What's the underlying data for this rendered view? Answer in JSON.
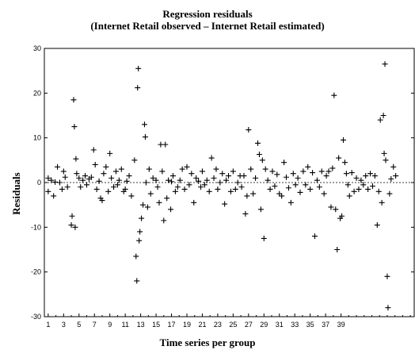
{
  "chart_data": {
    "type": "scatter",
    "title": "Regression residuals",
    "subtitle": "(Internet Retail observed – Internet Retail estimated)",
    "xlabel": "Time series per group",
    "ylabel": "Residuals",
    "xlim": [
      0.5,
      48.5
    ],
    "ylim": [
      -30,
      30
    ],
    "y_ticks": [
      30,
      20,
      10,
      0,
      -10,
      -20,
      -30
    ],
    "x_ticks": [
      1,
      3,
      5,
      7,
      9,
      11,
      13,
      15,
      17,
      19,
      21,
      23,
      25,
      27,
      29,
      31,
      33,
      35,
      37,
      39
    ],
    "zero_line": "dashed",
    "marker": "+",
    "grid": false,
    "points": [
      [
        1,
        1
      ],
      [
        1,
        -2
      ],
      [
        1.4,
        0.5
      ],
      [
        1.7,
        -3
      ],
      [
        1.9,
        0.1
      ],
      [
        2.2,
        3.5
      ],
      [
        2.5,
        0
      ],
      [
        2.8,
        -1.5
      ],
      [
        3,
        2.5
      ],
      [
        3.2,
        1.2
      ],
      [
        3.5,
        -1
      ],
      [
        4,
        -9.5
      ],
      [
        4.1,
        -7.5
      ],
      [
        4.3,
        18.5
      ],
      [
        4.4,
        12.5
      ],
      [
        4.5,
        -10
      ],
      [
        4.6,
        5.3
      ],
      [
        4.7,
        2
      ],
      [
        5,
        1
      ],
      [
        5.2,
        -1
      ],
      [
        5.5,
        0.5
      ],
      [
        5.8,
        1.5
      ],
      [
        6,
        -0.5
      ],
      [
        6.3,
        0.8
      ],
      [
        6.6,
        1.2
      ],
      [
        6.9,
        7.3
      ],
      [
        7.1,
        4
      ],
      [
        7.3,
        -1.5
      ],
      [
        7.6,
        0.3
      ],
      [
        7.8,
        -3.5
      ],
      [
        8,
        -4
      ],
      [
        8.2,
        2
      ],
      [
        8.5,
        3.5
      ],
      [
        8.8,
        -2
      ],
      [
        9,
        6.5
      ],
      [
        9.2,
        1
      ],
      [
        9.5,
        -1
      ],
      [
        9.8,
        2.5
      ],
      [
        10,
        -0.5
      ],
      [
        10.2,
        0.5
      ],
      [
        10.5,
        3
      ],
      [
        10.8,
        -2
      ],
      [
        11,
        -1.5
      ],
      [
        11.2,
        0.3
      ],
      [
        11.5,
        1.5
      ],
      [
        11.8,
        -3
      ],
      [
        12.2,
        5
      ],
      [
        12.4,
        -16.5
      ],
      [
        12.5,
        -22
      ],
      [
        12.6,
        21.2
      ],
      [
        12.7,
        25.5
      ],
      [
        12.8,
        -13
      ],
      [
        12.9,
        -11
      ],
      [
        13.1,
        -8
      ],
      [
        13.3,
        -5
      ],
      [
        13.5,
        13
      ],
      [
        13.6,
        10.2
      ],
      [
        13.7,
        0
      ],
      [
        13.9,
        -5.5
      ],
      [
        14.1,
        3
      ],
      [
        14.3,
        -2.5
      ],
      [
        14.6,
        1
      ],
      [
        15,
        0.5
      ],
      [
        15.2,
        -1
      ],
      [
        15.4,
        -4.5
      ],
      [
        15.6,
        8.5
      ],
      [
        15.8,
        2.5
      ],
      [
        16,
        -8.5
      ],
      [
        16.2,
        8.5
      ],
      [
        16.4,
        -3.5
      ],
      [
        16.6,
        0.5
      ],
      [
        16.9,
        -6
      ],
      [
        17,
        0.2
      ],
      [
        17.2,
        1.5
      ],
      [
        17.5,
        -2
      ],
      [
        17.8,
        -1
      ],
      [
        18.1,
        0.5
      ],
      [
        18.4,
        3
      ],
      [
        18.7,
        -1.5
      ],
      [
        19,
        3.5
      ],
      [
        19.3,
        -0.5
      ],
      [
        19.6,
        2
      ],
      [
        19.9,
        -4.5
      ],
      [
        20.2,
        1
      ],
      [
        20.5,
        0.3
      ],
      [
        20.8,
        -1
      ],
      [
        21,
        2.5
      ],
      [
        21.3,
        -0.5
      ],
      [
        21.6,
        0.5
      ],
      [
        21.9,
        -2
      ],
      [
        22.2,
        5.5
      ],
      [
        22.5,
        1
      ],
      [
        22.8,
        3
      ],
      [
        23,
        -1.5
      ],
      [
        23.3,
        0
      ],
      [
        23.6,
        2
      ],
      [
        23.9,
        -4.8
      ],
      [
        24.1,
        0.5
      ],
      [
        24.4,
        1.5
      ],
      [
        24.7,
        -2
      ],
      [
        25,
        2.5
      ],
      [
        25.3,
        -1.5
      ],
      [
        25.6,
        0
      ],
      [
        25.9,
        1.5
      ],
      [
        26.1,
        -1
      ],
      [
        26.4,
        1.5
      ],
      [
        26.6,
        -7
      ],
      [
        26.8,
        -3
      ],
      [
        27,
        11.8
      ],
      [
        27.3,
        3
      ],
      [
        27.6,
        -2.5
      ],
      [
        27.9,
        1
      ],
      [
        28.2,
        8.8
      ],
      [
        28.4,
        6.3
      ],
      [
        28.6,
        -6
      ],
      [
        28.8,
        5
      ],
      [
        29,
        -12.5
      ],
      [
        29.2,
        3
      ],
      [
        29.5,
        0.5
      ],
      [
        29.8,
        -1.5
      ],
      [
        30.1,
        2.5
      ],
      [
        30.4,
        -0.8
      ],
      [
        30.7,
        1.8
      ],
      [
        31,
        -2.5
      ],
      [
        31.3,
        -3
      ],
      [
        31.6,
        4.5
      ],
      [
        31.9,
        1.2
      ],
      [
        32.2,
        -1.2
      ],
      [
        32.5,
        -4.5
      ],
      [
        32.8,
        2
      ],
      [
        33.1,
        -0.5
      ],
      [
        33.4,
        1
      ],
      [
        33.7,
        -2.2
      ],
      [
        34.1,
        2.5
      ],
      [
        34.4,
        -0.5
      ],
      [
        34.7,
        3.5
      ],
      [
        35,
        -1.5
      ],
      [
        35.3,
        2.2
      ],
      [
        35.6,
        -12
      ],
      [
        35.9,
        0.5
      ],
      [
        36.2,
        -1
      ],
      [
        36.5,
        2.5
      ],
      [
        36.8,
        -2.5
      ],
      [
        37.1,
        1.5
      ],
      [
        37.4,
        2.5
      ],
      [
        37.7,
        -5.5
      ],
      [
        37.9,
        3.2
      ],
      [
        38.1,
        19.5
      ],
      [
        38.3,
        -6
      ],
      [
        38.5,
        -15
      ],
      [
        38.7,
        5.5
      ],
      [
        38.9,
        -8
      ],
      [
        39.1,
        -7.5
      ],
      [
        39.3,
        9.5
      ],
      [
        39.5,
        4.5
      ],
      [
        39.7,
        2
      ],
      [
        39.9,
        -0.5
      ],
      [
        40.1,
        -3
      ],
      [
        40.4,
        2.2
      ],
      [
        40.7,
        -2
      ],
      [
        41,
        1
      ],
      [
        41.3,
        -1.5
      ],
      [
        41.6,
        0.5
      ],
      [
        41.9,
        -0.5
      ],
      [
        42.2,
        1.5
      ],
      [
        42.5,
        -1.5
      ],
      [
        42.8,
        2
      ],
      [
        43.1,
        -0.8
      ],
      [
        43.4,
        1.5
      ],
      [
        43.7,
        -9.5
      ],
      [
        43.9,
        -2
      ],
      [
        44.1,
        14
      ],
      [
        44.3,
        -4.5
      ],
      [
        44.5,
        15
      ],
      [
        44.6,
        6.5
      ],
      [
        44.7,
        26.5
      ],
      [
        44.8,
        5
      ],
      [
        45,
        -21
      ],
      [
        45.1,
        -28
      ],
      [
        45.3,
        -2.5
      ],
      [
        45.5,
        0.8
      ],
      [
        45.8,
        3.5
      ],
      [
        46.1,
        1.5
      ]
    ]
  }
}
